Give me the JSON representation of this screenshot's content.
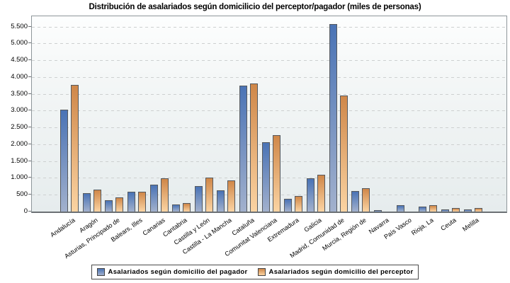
{
  "title": "Distribución de asalariados según domicilicio del perceptor/pagador (miles de personas)",
  "chart_data": {
    "type": "bar",
    "title": "Distribución de asalariados según domicilicio del perceptor/pagador (miles de personas)",
    "categories": [
      "Andalucía",
      "Aragón",
      "Asturias, Principado de",
      "Balears, Illes",
      "Canarias",
      "Cantabria",
      "Castilla y León",
      "Castilla - La Mancha",
      "Cataluña",
      "Comunitat Valenciana",
      "Extremadura",
      "Galicia",
      "Madrid, Comunidad de",
      "Murcia, Región de",
      "Navarra",
      "País Vasco",
      "Rioja, La",
      "Ceuta",
      "Melilla"
    ],
    "series": [
      {
        "name": "Asalariados según domicilio del pagador",
        "values": [
          3040,
          540,
          330,
          590,
          810,
          220,
          750,
          640,
          3750,
          2070,
          370,
          1000,
          5580,
          620,
          50,
          180,
          150,
          70,
          70
        ]
      },
      {
        "name": "Asalariados según domicilio del perceptor",
        "values": [
          3760,
          650,
          420,
          580,
          990,
          250,
          1010,
          930,
          3800,
          2280,
          460,
          1100,
          3460,
          700,
          0,
          0,
          195,
          100,
          110
        ]
      }
    ],
    "ylabel": "",
    "xlabel": "",
    "ylim": [
      0,
      5810
    ],
    "ytick_interval": 500,
    "yticks": [
      {
        "value": 0,
        "label": "0"
      },
      {
        "value": 500,
        "label": "500"
      },
      {
        "value": 1000,
        "label": "1.000"
      },
      {
        "value": 1500,
        "label": "1.500"
      },
      {
        "value": 2000,
        "label": "2.000"
      },
      {
        "value": 2500,
        "label": "2.500"
      },
      {
        "value": 3000,
        "label": "3.000"
      },
      {
        "value": 3500,
        "label": "3.500"
      },
      {
        "value": 4000,
        "label": "4.000"
      },
      {
        "value": 4500,
        "label": "4.500"
      },
      {
        "value": 5000,
        "label": "5.000"
      },
      {
        "value": 5500,
        "label": "5.500"
      }
    ],
    "grid": true,
    "legend_position": "bottom"
  },
  "colors": {
    "bar_blue_top": "#4a73b5",
    "bar_blue_bottom": "#a2b1cd",
    "bar_orange_top": "#cf8749",
    "bar_orange_bottom": "#fbd4a3",
    "bar_border": "#55595e",
    "gridline": "#cdd0d0",
    "plot_border": "#8e969a",
    "axis_line": "#6b7074",
    "text": "#000000"
  }
}
